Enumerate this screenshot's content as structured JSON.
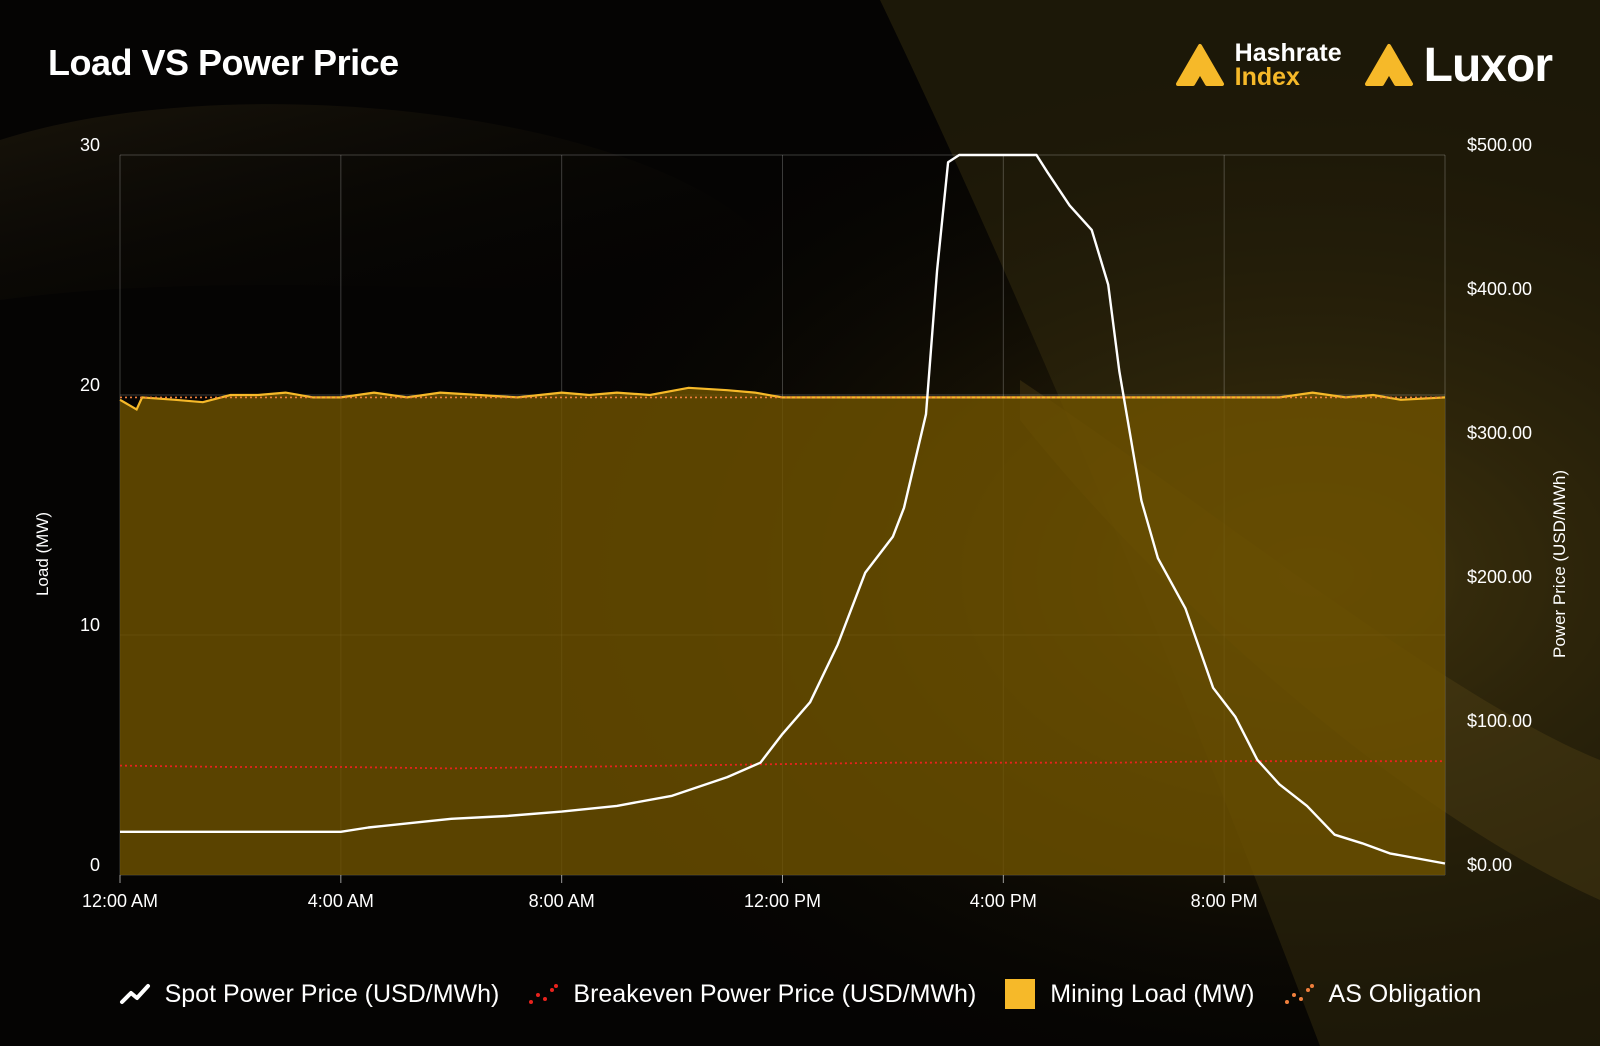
{
  "header": {
    "title": "Load VS Power Price"
  },
  "logos": {
    "hashrate_top": "Hashrate",
    "hashrate_bottom": "Index",
    "luxor": "Luxor"
  },
  "legend": [
    {
      "label": "Spot Power Price (USD/MWh)",
      "icon": "line-icon"
    },
    {
      "label": "Breakeven Power Price (USD/MWh)",
      "icon": "dotted-line-icon"
    },
    {
      "label": "Mining Load (MW)",
      "icon": "square-icon"
    },
    {
      "label": "AS Obligation",
      "icon": "dotted-line-icon"
    }
  ],
  "colors": {
    "spot": "#ffffff",
    "breakeven": "#e8231d",
    "mining_load_line": "#f6b929",
    "mining_load_fill": "#6e5200",
    "as_obligation": "#f07f3c",
    "accent": "#f6b929"
  },
  "chart_data": {
    "type": "area",
    "title": "Load VS Power Price",
    "ylabel_left": "Load (MW)",
    "ylabel_right": "Power Price (USD/MWh)",
    "ylim_left": [
      0,
      30
    ],
    "ylim_right": [
      0,
      500
    ],
    "xlim_hours": [
      0,
      24
    ],
    "x_ticks": [
      {
        "hour": 0,
        "label": "12:00 AM"
      },
      {
        "hour": 4,
        "label": "4:00 AM"
      },
      {
        "hour": 8,
        "label": "8:00 AM"
      },
      {
        "hour": 12,
        "label": "12:00 PM"
      },
      {
        "hour": 16,
        "label": "4:00 PM"
      },
      {
        "hour": 20,
        "label": "8:00 PM"
      }
    ],
    "y_ticks_left": [
      {
        "value": 0,
        "label": "0"
      },
      {
        "value": 10,
        "label": "10"
      },
      {
        "value": 20,
        "label": "20"
      },
      {
        "value": 30,
        "label": "30"
      }
    ],
    "y_ticks_right": [
      {
        "value": 0,
        "label": "$0.00"
      },
      {
        "value": 100,
        "label": "$100.00"
      },
      {
        "value": 200,
        "label": "$200.00"
      },
      {
        "value": 300,
        "label": "$300.00"
      },
      {
        "value": 400,
        "label": "$400.00"
      },
      {
        "value": 500,
        "label": "$500.00"
      }
    ],
    "grid": true,
    "legend_position": "bottom",
    "series": [
      {
        "name": "Spot Power Price (USD/MWh)",
        "axis": "right",
        "kind": "line",
        "points": [
          [
            0,
            30
          ],
          [
            4,
            30
          ],
          [
            4.5,
            33
          ],
          [
            5.5,
            37
          ],
          [
            6,
            39
          ],
          [
            7,
            41
          ],
          [
            8,
            44
          ],
          [
            9,
            48
          ],
          [
            10,
            55
          ],
          [
            11,
            68
          ],
          [
            11.6,
            78
          ],
          [
            12,
            98
          ],
          [
            12.5,
            120
          ],
          [
            13,
            160
          ],
          [
            13.5,
            210
          ],
          [
            14,
            235
          ],
          [
            14.2,
            255
          ],
          [
            14.6,
            320
          ],
          [
            14.8,
            420
          ],
          [
            15,
            495
          ],
          [
            15.2,
            500
          ],
          [
            16.6,
            500
          ],
          [
            16.8,
            488
          ],
          [
            17.2,
            465
          ],
          [
            17.6,
            448
          ],
          [
            17.9,
            410
          ],
          [
            18.1,
            350
          ],
          [
            18.5,
            260
          ],
          [
            18.8,
            220
          ],
          [
            19.3,
            185
          ],
          [
            19.8,
            130
          ],
          [
            20.2,
            110
          ],
          [
            20.6,
            80
          ],
          [
            21,
            63
          ],
          [
            21.5,
            48
          ],
          [
            22,
            28
          ],
          [
            22.5,
            22
          ],
          [
            23,
            15
          ],
          [
            24,
            8
          ]
        ]
      },
      {
        "name": "Breakeven Power Price (USD/MWh)",
        "axis": "right",
        "kind": "dotted",
        "points": [
          [
            0,
            76
          ],
          [
            2,
            75
          ],
          [
            4,
            75
          ],
          [
            6,
            74
          ],
          [
            8,
            75
          ],
          [
            10,
            76
          ],
          [
            12,
            77
          ],
          [
            14,
            78
          ],
          [
            16,
            78
          ],
          [
            18,
            78
          ],
          [
            20,
            79
          ],
          [
            22,
            79
          ],
          [
            24,
            79
          ]
        ]
      },
      {
        "name": "Mining Load (MW)",
        "axis": "left",
        "kind": "area",
        "points": [
          [
            0,
            19.8
          ],
          [
            0.3,
            19.4
          ],
          [
            0.4,
            19.9
          ],
          [
            1,
            19.8
          ],
          [
            1.5,
            19.7
          ],
          [
            2,
            20.0
          ],
          [
            2.5,
            20.0
          ],
          [
            3,
            20.1
          ],
          [
            3.5,
            19.9
          ],
          [
            4,
            19.9
          ],
          [
            4.6,
            20.1
          ],
          [
            5.2,
            19.9
          ],
          [
            5.8,
            20.1
          ],
          [
            6.5,
            20.0
          ],
          [
            7.2,
            19.9
          ],
          [
            8,
            20.1
          ],
          [
            8.5,
            20.0
          ],
          [
            9,
            20.1
          ],
          [
            9.6,
            20.0
          ],
          [
            10.3,
            20.3
          ],
          [
            11,
            20.2
          ],
          [
            11.5,
            20.1
          ],
          [
            12,
            19.9
          ],
          [
            13,
            19.9
          ],
          [
            14,
            19.9
          ],
          [
            15,
            19.9
          ],
          [
            16,
            19.9
          ],
          [
            17,
            19.9
          ],
          [
            18,
            19.9
          ],
          [
            19,
            19.9
          ],
          [
            20,
            19.9
          ],
          [
            21,
            19.9
          ],
          [
            21.6,
            20.1
          ],
          [
            22.2,
            19.9
          ],
          [
            22.7,
            20.0
          ],
          [
            23.2,
            19.8
          ],
          [
            24,
            19.9
          ]
        ]
      },
      {
        "name": "AS Obligation",
        "axis": "left",
        "kind": "dotted",
        "points": [
          [
            0,
            19.9
          ],
          [
            24,
            19.9
          ]
        ]
      }
    ]
  }
}
